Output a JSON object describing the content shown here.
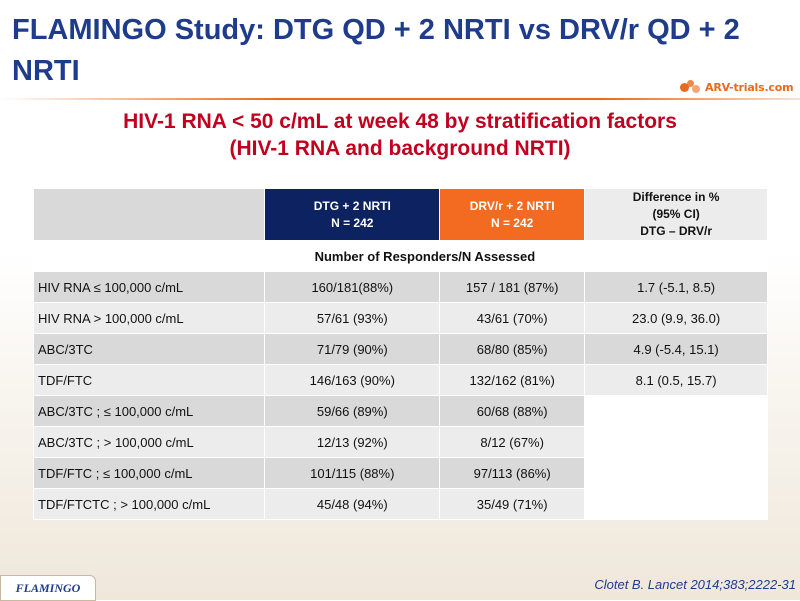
{
  "slide": {
    "title": "FLAMINGO Study: DTG QD + 2 NRTI vs DRV/r QD + 2 NRTI",
    "subtitle_line1": "HIV-1 RNA < 50 c/mL at week 48 by stratification factors",
    "subtitle_line2": "(HIV-1 RNA and background NRTI)",
    "logo_text": "ARV-trials.com",
    "logo_icon": "arv-trials-logo-icon",
    "footer_tag": "FLAMINGO",
    "citation": "Clotet B. Lancet 2014;383;2222-31"
  },
  "colors": {
    "title_blue": "#1f3b8c",
    "subtitle_red": "#c0001e",
    "dtg_header": "#0d2260",
    "drv_header": "#f26b21",
    "accent_orange": "#e86a1c"
  },
  "table": {
    "header": {
      "dtg_line1": "DTG + 2 NRTI",
      "dtg_line2": "N = 242",
      "drv_line1": "DRV/r + 2 NRTI",
      "drv_line2": "N = 242",
      "diff_line1": "Difference in %",
      "diff_line2": "(95% CI)",
      "diff_line3": "DTG – DRV/r"
    },
    "subheader": "Number of Responders/N Assessed",
    "rows": [
      {
        "label": "HIV RNA  ≤ 100,000 c/mL",
        "dtg": "160/181(88%)",
        "drv": "157 / 181 (87%)",
        "diff": "1.7 (-5.1, 8.5)"
      },
      {
        "label": "HIV RNA > 100,000 c/mL",
        "dtg": "57/61 (93%)",
        "drv": "43/61 (70%)",
        "diff": "23.0 (9.9, 36.0)"
      },
      {
        "label": "ABC/3TC",
        "dtg": "71/79 (90%)",
        "drv": "68/80 (85%)",
        "diff": "4.9 (-5.4, 15.1)"
      },
      {
        "label": "TDF/FTC",
        "dtg": "146/163 (90%)",
        "drv": "132/162 (81%)",
        "diff": "8.1 (0.5, 15.7)"
      },
      {
        "label": "ABC/3TC ; ≤ 100,000 c/mL",
        "dtg": "59/66 (89%)",
        "drv": "60/68 (88%)",
        "diff": ""
      },
      {
        "label": "ABC/3TC ; > 100,000 c/mL",
        "dtg": "12/13 (92%)",
        "drv": "8/12 (67%)",
        "diff": ""
      },
      {
        "label": "TDF/FTC ; ≤ 100,000 c/mL",
        "dtg": "101/115 (88%)",
        "drv": "97/113 (86%)",
        "diff": ""
      },
      {
        "label": "TDF/FTCTC ; > 100,000 c/mL",
        "dtg": "45/48 (94%)",
        "drv": "35/49 (71%)",
        "diff": ""
      }
    ]
  }
}
